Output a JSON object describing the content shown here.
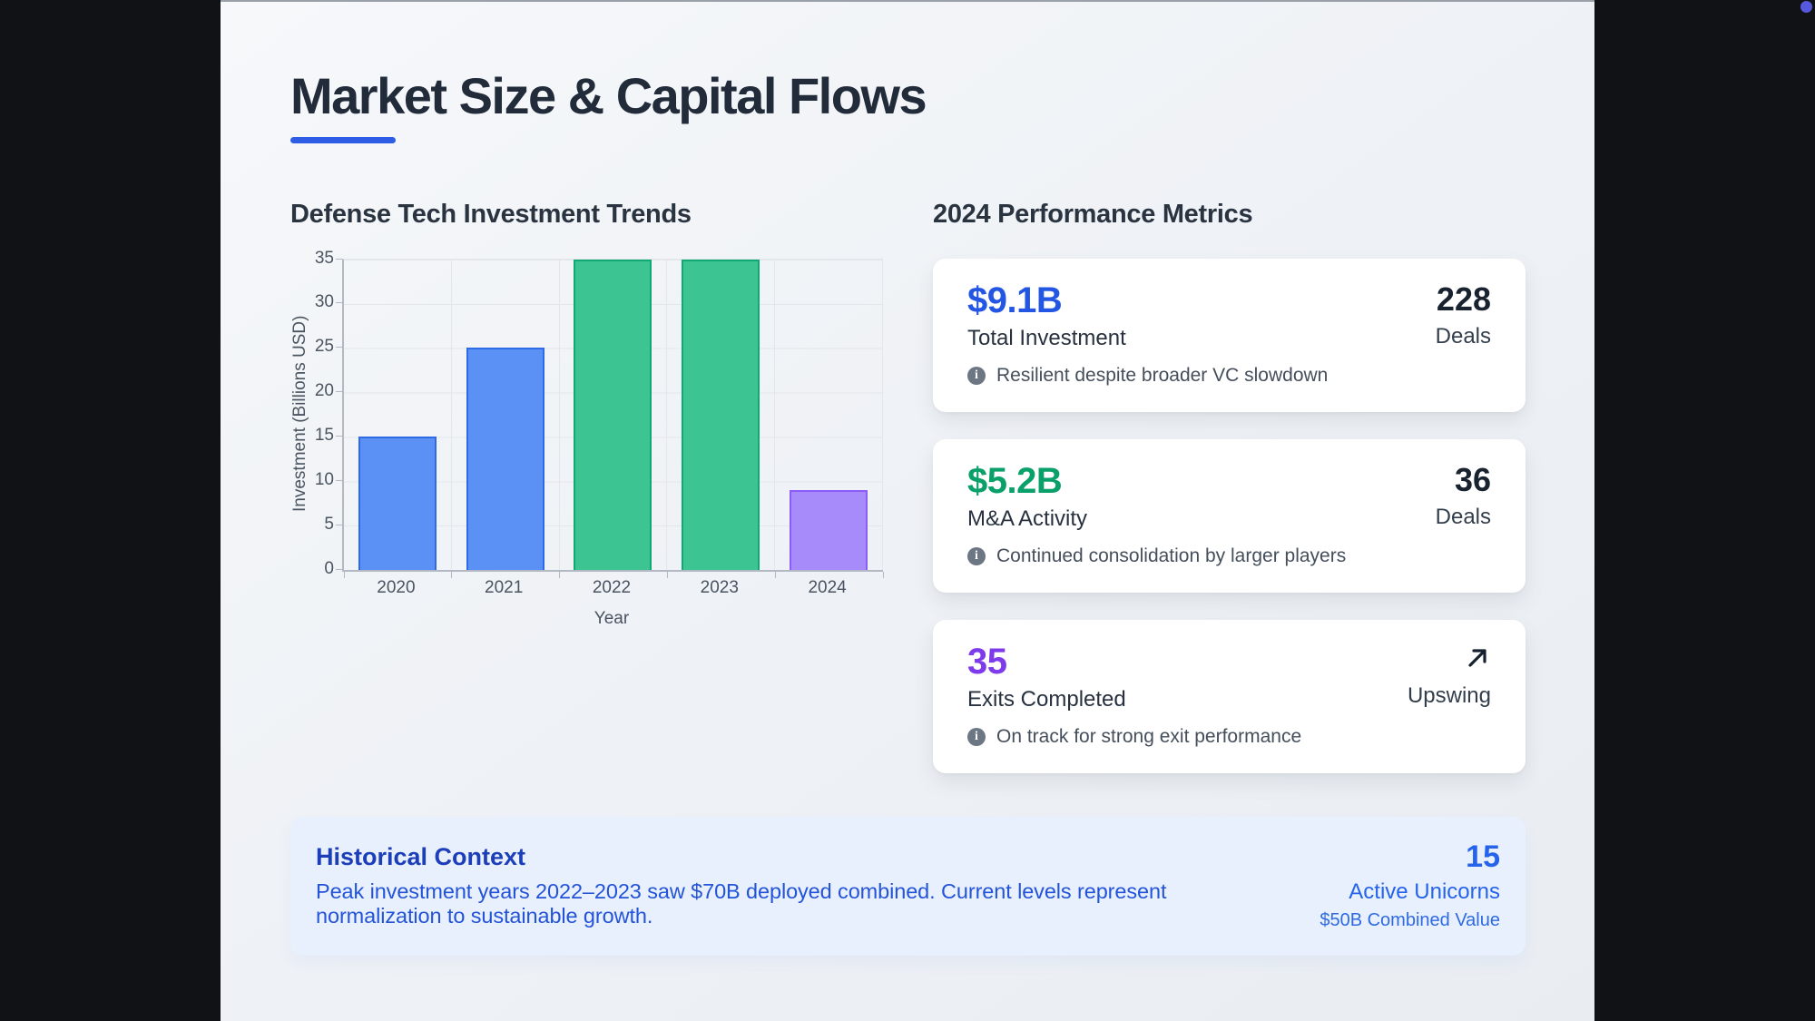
{
  "window": {
    "top_border_color": "#9aa0a8",
    "letterbox_color": "#111216",
    "indicator_dot_color": "#5659dd"
  },
  "page": {
    "title": "Market Size & Capital Flows",
    "accent_color": "#2d5ce5"
  },
  "left_section": {
    "heading": "Defense Tech Investment Trends"
  },
  "chart_data": {
    "type": "bar",
    "title": "Defense Tech Investment Trends",
    "categories": [
      "2020",
      "2021",
      "2022",
      "2023",
      "2024"
    ],
    "values": [
      15,
      25,
      35,
      35,
      9
    ],
    "xlabel": "Year",
    "ylabel": "Investment (Billions USD)",
    "ylim": [
      0,
      35
    ],
    "yticks": [
      0,
      5,
      10,
      15,
      20,
      25,
      30,
      35
    ],
    "grid": true,
    "legend": false,
    "bar_fill_colors": [
      "#5b90f5",
      "#5b90f5",
      "#3cc492",
      "#3cc492",
      "#a78bfa"
    ],
    "bar_border_colors": [
      "#2d6ae3",
      "#2d6ae3",
      "#10a873",
      "#10a873",
      "#8b5cf6"
    ]
  },
  "right_section": {
    "heading": "2024 Performance Metrics",
    "note_icon": "info-circle-icon",
    "cards": [
      {
        "value": "$9.1B",
        "value_color": "#2456e4",
        "label": "Total Investment",
        "side_value": "228",
        "side_label": "Deals",
        "note": "Resilient despite broader VC slowdown"
      },
      {
        "value": "$5.2B",
        "value_color": "#0aa06a",
        "label": "M&A Activity",
        "side_value": "36",
        "side_label": "Deals",
        "note": "Continued consolidation by larger players"
      },
      {
        "value": "35",
        "value_color": "#7d3bec",
        "label": "Exits Completed",
        "side_icon": "arrow-up-right-icon",
        "side_label": "Upswing",
        "note": "On track for strong exit performance"
      }
    ]
  },
  "banner": {
    "heading": "Historical Context",
    "body": "Peak investment years 2022–2023 saw $70B deployed combined. Current levels represent normalization to sustainable growth.",
    "stat_value": "15",
    "stat_label": "Active Unicorns",
    "stat_sub": "$50B Combined Value"
  }
}
